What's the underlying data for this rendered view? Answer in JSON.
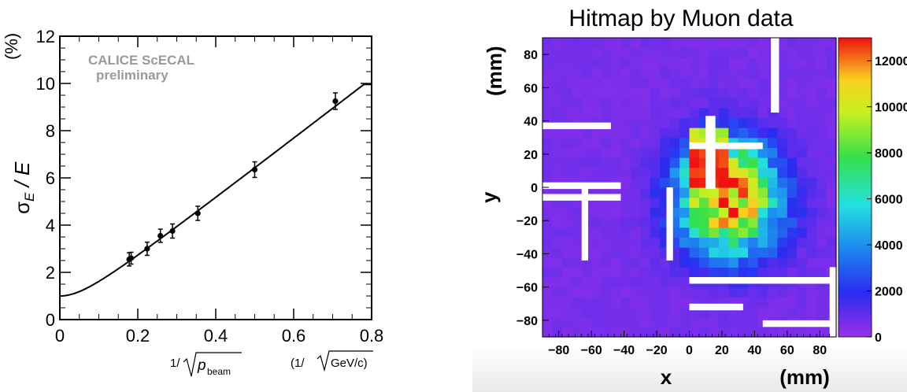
{
  "chart_data": [
    {
      "type": "scatter",
      "ylabel_sigma": "σ",
      "ylabel_sub": "E",
      "ylabel_rest": " / E",
      "ylabel_unit": "(%)",
      "xlabel_prefix": "1/",
      "xlabel_var": "p",
      "xlabel_sub": "beam",
      "xlabel_unit_prefix": "(1/",
      "xlabel_unit": "GeV/c)",
      "annotation_line1": "CALICE ScECAL",
      "annotation_line2": "preliminary",
      "xlim": [
        0,
        0.8
      ],
      "ylim": [
        0,
        12
      ],
      "xticks": [
        "0",
        "0.2",
        "0.4",
        "0.6",
        "0.8"
      ],
      "yticks": [
        "0",
        "2",
        "4",
        "6",
        "8",
        "10",
        "12"
      ],
      "points": [
        {
          "x": 0.178,
          "y": 2.55,
          "err": 0.28
        },
        {
          "x": 0.183,
          "y": 2.6,
          "err": 0.25
        },
        {
          "x": 0.224,
          "y": 3.0,
          "err": 0.28
        },
        {
          "x": 0.258,
          "y": 3.55,
          "err": 0.28
        },
        {
          "x": 0.289,
          "y": 3.75,
          "err": 0.3
        },
        {
          "x": 0.354,
          "y": 4.5,
          "err": 0.3
        },
        {
          "x": 0.5,
          "y": 6.35,
          "err": 0.33
        },
        {
          "x": 0.707,
          "y": 9.25,
          "err": 0.35
        }
      ],
      "fit_curve": {
        "stochastic": 12.7,
        "constant": 1.0,
        "x_range": [
          0,
          0.78
        ]
      }
    },
    {
      "type": "heatmap",
      "title": "Hitmap by Muon data",
      "xlabel": "x",
      "xunit": "(mm)",
      "ylabel": "y",
      "yunit": "(mm)",
      "xlim": [
        -90,
        90
      ],
      "ylim": [
        -90,
        90
      ],
      "xticks": [
        "−80",
        "−60",
        "−40",
        "−20",
        "0",
        "20",
        "40",
        "60",
        "80"
      ],
      "yticks": [
        "80",
        "60",
        "40",
        "20",
        "0",
        "−20",
        "−40",
        "−60",
        "−80"
      ],
      "zlim": [
        0,
        13000
      ],
      "zticks": [
        "0",
        "2000",
        "4000",
        "6000",
        "8000",
        "10000",
        "12000"
      ]
    }
  ]
}
